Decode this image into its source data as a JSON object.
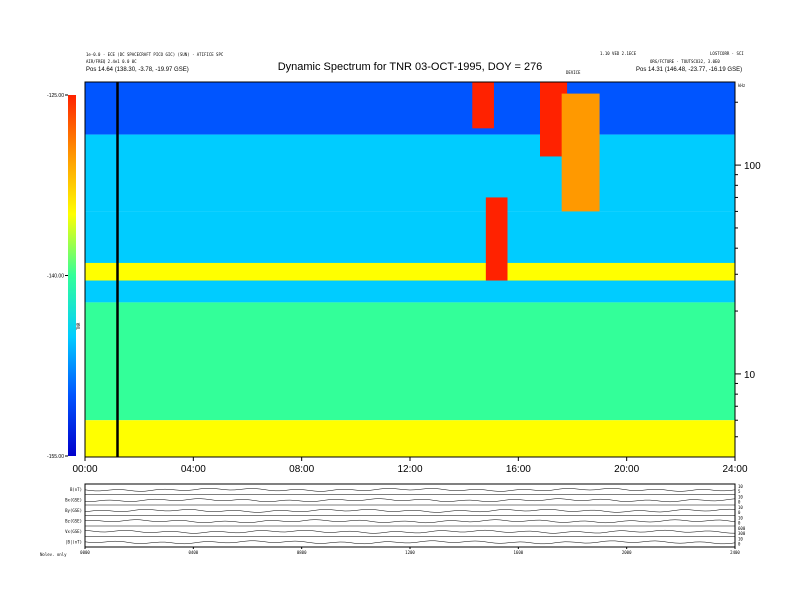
{
  "chart_data": {
    "type": "heatmap",
    "title": "Dynamic Spectrum for TNR 03-OCT-1995, DOY = 276",
    "header_left": [
      "1e-0.0 · ECE (DC SPACECRAFT PICO GIC) (SUN) · ATIFICE SPC",
      "AIR/FREQ 2.4e1 0.0 0C",
      "Pos    14.64 (138.30, -3.78, -19.97 GSE)"
    ],
    "header_right": [
      "1.10 VED 2.1ECE",
      "LOSTCORR · SCI",
      "ORG/FCTURE · TOUTSCO32, 3.0E0",
      "Pos    14.31 (146.48, -23.77, -16.19 GSE)"
    ],
    "event_label": "DEVICE",
    "x_tick_labels": [
      "00:00",
      "04:00",
      "08:00",
      "12:00",
      "16:00",
      "20:00",
      "24:00"
    ],
    "x_ticks_hours": [
      0,
      4,
      8,
      12,
      16,
      20,
      24
    ],
    "xlim_hours": [
      0,
      24
    ],
    "y_scale": "log",
    "y_unit": "kHz",
    "ylim_khz": [
      4,
      250
    ],
    "y_major_ticks": [
      10,
      100
    ],
    "y_major_labels": [
      "10",
      "100"
    ],
    "y_minor_ticks": [
      5,
      6,
      7,
      8,
      9,
      20,
      30,
      40,
      50,
      60,
      70,
      80,
      90,
      200
    ],
    "colorbar": {
      "label": "TNR",
      "tick_labels": [
        "-125.00",
        "-140.00",
        "-155.00"
      ],
      "ticks": [
        -125,
        -140,
        -155
      ],
      "range": [
        -155,
        -125
      ],
      "colors": [
        "#0000cc",
        "#0055ff",
        "#00ccff",
        "#33ff99",
        "#ffff00",
        "#ff9900",
        "#ff2200"
      ]
    },
    "annotations": [
      {
        "type": "vertical-line",
        "x_hours": 1.2,
        "color": "#000000"
      }
    ],
    "bands": [
      {
        "region": "top",
        "ylim_khz": [
          140,
          250
        ],
        "level": -152
      },
      {
        "region": "upper",
        "ylim_khz": [
          60,
          140
        ],
        "level": -147
      },
      {
        "region": "background",
        "ylim_khz": [
          22,
          60
        ],
        "level": -143
      },
      {
        "region": "plasma-line",
        "ylim_khz": [
          28,
          34
        ],
        "level": -137
      },
      {
        "region": "lower",
        "ylim_khz": [
          6,
          22
        ],
        "level": -139
      },
      {
        "region": "floor",
        "ylim_khz": [
          4,
          6
        ],
        "level": -133
      }
    ],
    "bursts": [
      {
        "x_hours": [
          14.3,
          15.1
        ],
        "ylim_khz": [
          150,
          250
        ],
        "level": -126
      },
      {
        "x_hours": [
          14.8,
          15.6
        ],
        "ylim_khz": [
          28,
          70
        ],
        "level": -127
      },
      {
        "x_hours": [
          16.8,
          17.8
        ],
        "ylim_khz": [
          110,
          250
        ],
        "level": -126
      },
      {
        "x_hours": [
          17.6,
          19.0
        ],
        "ylim_khz": [
          60,
          220
        ],
        "level": -128
      }
    ]
  },
  "panels": {
    "rows": [
      {
        "label": "B(nT)",
        "right_ticks": [
          "10",
          "5"
        ]
      },
      {
        "label": "Bx(GSE)",
        "right_ticks": [
          "10",
          "0"
        ]
      },
      {
        "label": "By(GSE)",
        "right_ticks": [
          "10",
          "0"
        ]
      },
      {
        "label": "Bz(GSE)",
        "right_ticks": [
          "10",
          "0"
        ]
      },
      {
        "label": "Vx(GSE)",
        "right_ticks": [
          "600",
          "300"
        ]
      },
      {
        "label": "|B|(nT)",
        "right_ticks": [
          "10",
          "0"
        ]
      }
    ],
    "x_tick_labels": [
      "0000",
      "0400",
      "0800",
      "1200",
      "1600",
      "2000",
      "2400"
    ],
    "footer_label": "Nolev. only"
  },
  "colors": {
    "frame": "#000000",
    "background": "#ffffff"
  }
}
